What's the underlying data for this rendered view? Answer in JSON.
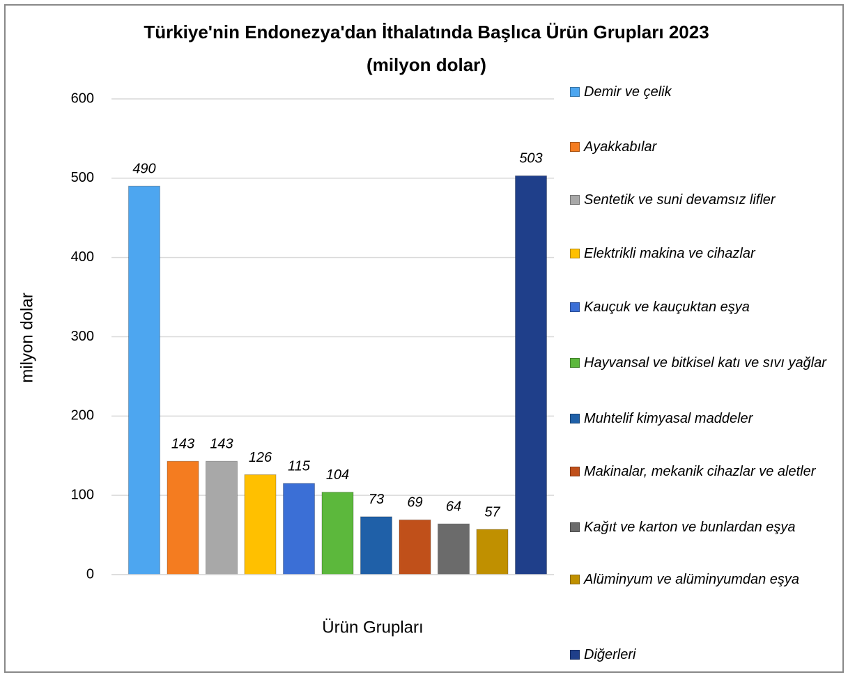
{
  "chart_data": {
    "type": "bar",
    "title": "Türkiye'nin Endonezya'dan İthalatında Başlıca Ürün Grupları 2023",
    "subtitle": "(milyon dolar)",
    "x_label": "Ürün Grupları",
    "y_label": "milyon dolar",
    "categories": [
      null
    ],
    "series": [
      {
        "name": "Demir ve çelik",
        "color": "#4da6f0",
        "values": [
          490
        ]
      },
      {
        "name": "Ayakkabılar",
        "color": "#f47c20",
        "values": [
          143
        ]
      },
      {
        "name": "Sentetik ve suni devamsız lifler",
        "color": "#a8a8a8",
        "values": [
          143
        ]
      },
      {
        "name": "Elektrikli makina ve cihazlar",
        "color": "#ffc000",
        "values": [
          126
        ]
      },
      {
        "name": "Kauçuk ve kauçuktan eşya",
        "color": "#3b6fd6",
        "values": [
          115
        ]
      },
      {
        "name": "Hayvansal ve bitkisel katı ve sıvı yağlar",
        "color": "#5cb83c",
        "values": [
          104
        ]
      },
      {
        "name": "Muhtelif kimyasal maddeler",
        "color": "#1f60a8",
        "values": [
          73
        ]
      },
      {
        "name": "Makinalar, mekanik cihazlar ve aletler",
        "color": "#c0501a",
        "values": [
          69
        ]
      },
      {
        "name": "Kağıt ve karton ve bunlardan eşya",
        "color": "#6b6b6b",
        "values": [
          64
        ]
      },
      {
        "name": "Alüminyum ve alüminyumdan eşya",
        "color": "#c09000",
        "values": [
          57
        ]
      },
      {
        "name": "Diğerleri",
        "color": "#1f3f8a",
        "values": [
          503
        ]
      }
    ],
    "ylim": [
      0,
      600
    ],
    "yticks": [
      0,
      100,
      200,
      300,
      400,
      500,
      600
    ],
    "grid": true,
    "legend": "right"
  }
}
